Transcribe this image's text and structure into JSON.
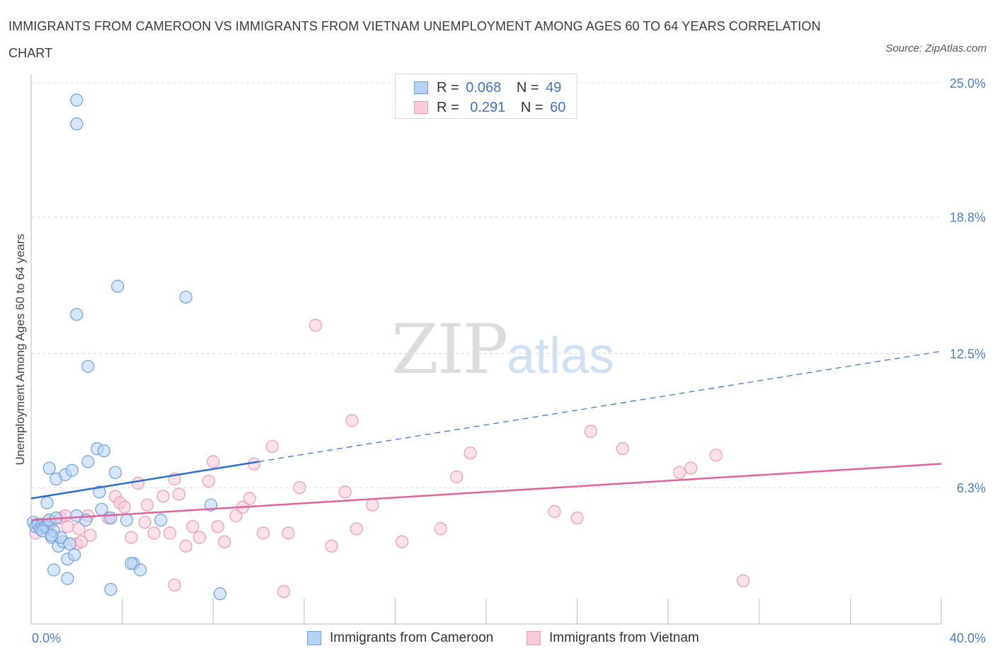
{
  "title": "IMMIGRANTS FROM CAMEROON VS IMMIGRANTS FROM VIETNAM UNEMPLOYMENT AMONG AGES 60 TO 64 YEARS CORRELATION CHART",
  "source": "Source: ZipAtlas.com",
  "watermark": {
    "zip": "ZIP",
    "atlas": "atlas"
  },
  "colors": {
    "cameroon_fill": "#b7d1f5",
    "cameroon_stroke": "#6f9fd8",
    "cameroon_line": "#2f6fd0",
    "vietnam_fill": "#f8c9d8",
    "vietnam_stroke": "#ea9ab5",
    "vietnam_line": "#e0649a",
    "tick_label": "#4a7fc8",
    "grid": "#d8d8d8"
  },
  "legend_top": {
    "rows": [
      {
        "r_label": "R =",
        "r_value": "0.068",
        "n_label": "N =",
        "n_value": "49"
      },
      {
        "r_label": "R =",
        "r_value": "0.291",
        "n_label": "N =",
        "n_value": "60"
      }
    ]
  },
  "chart_data": {
    "type": "scatter",
    "title": "IMMIGRANTS FROM CAMEROON VS IMMIGRANTS FROM VIETNAM UNEMPLOYMENT AMONG AGES 60 TO 64 YEARS CORRELATION CHART",
    "ylabel": "Unemployment Among Ages 60 to 64 years",
    "xlim": [
      0,
      40
    ],
    "ylim": [
      0,
      25
    ],
    "x_tick_labels": [
      "0.0%",
      "40.0%"
    ],
    "y_ticks": [
      6.3,
      12.5,
      18.8,
      25.0
    ],
    "y_tick_labels": [
      "6.3%",
      "12.5%",
      "18.8%",
      "25.0%"
    ],
    "series": [
      {
        "name": "Immigrants from Cameroon",
        "R": 0.068,
        "N": 49,
        "points": [
          [
            0.1,
            4.7
          ],
          [
            0.2,
            4.5
          ],
          [
            0.3,
            4.6
          ],
          [
            0.4,
            4.4
          ],
          [
            0.5,
            4.6
          ],
          [
            0.6,
            4.5
          ],
          [
            0.7,
            4.5
          ],
          [
            0.8,
            4.8
          ],
          [
            0.5,
            4.3
          ],
          [
            0.7,
            5.6
          ],
          [
            0.9,
            4.0
          ],
          [
            1.0,
            4.3
          ],
          [
            1.1,
            4.9
          ],
          [
            0.8,
            7.2
          ],
          [
            1.1,
            6.7
          ],
          [
            1.5,
            6.9
          ],
          [
            1.8,
            7.1
          ],
          [
            1.2,
            3.6
          ],
          [
            1.4,
            3.8
          ],
          [
            1.3,
            4.0
          ],
          [
            1.7,
            3.7
          ],
          [
            1.6,
            3.0
          ],
          [
            1.9,
            3.2
          ],
          [
            1.0,
            2.5
          ],
          [
            1.6,
            2.1
          ],
          [
            2.0,
            5.0
          ],
          [
            2.5,
            7.5
          ],
          [
            2.9,
            8.1
          ],
          [
            3.0,
            6.1
          ],
          [
            3.2,
            8.0
          ],
          [
            3.7,
            7.0
          ],
          [
            3.1,
            5.3
          ],
          [
            3.5,
            4.9
          ],
          [
            4.2,
            4.8
          ],
          [
            4.5,
            2.8
          ],
          [
            4.4,
            2.8
          ],
          [
            4.8,
            2.5
          ],
          [
            5.7,
            4.8
          ],
          [
            7.9,
            5.5
          ],
          [
            2.0,
            14.3
          ],
          [
            3.8,
            15.6
          ],
          [
            6.8,
            15.1
          ],
          [
            2.5,
            11.9
          ],
          [
            2.0,
            24.2
          ],
          [
            2.0,
            23.1
          ],
          [
            8.3,
            1.4
          ],
          [
            3.5,
            1.6
          ],
          [
            0.9,
            4.1
          ],
          [
            2.4,
            4.8
          ]
        ],
        "trend": {
          "x0": 0,
          "y0": 5.8,
          "x1": 40,
          "y1": 12.6,
          "solid_until": 10
        }
      },
      {
        "name": "Immigrants from Vietnam",
        "R": 0.291,
        "N": 60,
        "points": [
          [
            0.2,
            4.2
          ],
          [
            0.4,
            4.6
          ],
          [
            0.7,
            4.4
          ],
          [
            0.9,
            4.7
          ],
          [
            1.3,
            4.9
          ],
          [
            1.5,
            5.0
          ],
          [
            1.6,
            4.5
          ],
          [
            2.1,
            4.4
          ],
          [
            2.0,
            3.7
          ],
          [
            2.6,
            4.1
          ],
          [
            2.5,
            5.0
          ],
          [
            3.4,
            4.9
          ],
          [
            3.7,
            5.9
          ],
          [
            3.9,
            5.6
          ],
          [
            4.1,
            5.4
          ],
          [
            4.4,
            4.0
          ],
          [
            4.7,
            6.5
          ],
          [
            5.0,
            4.7
          ],
          [
            5.1,
            5.5
          ],
          [
            5.4,
            4.2
          ],
          [
            5.8,
            5.9
          ],
          [
            6.1,
            4.2
          ],
          [
            6.3,
            6.7
          ],
          [
            6.5,
            6.0
          ],
          [
            6.8,
            3.6
          ],
          [
            7.1,
            4.5
          ],
          [
            7.4,
            4.0
          ],
          [
            7.8,
            6.6
          ],
          [
            8.0,
            7.5
          ],
          [
            8.2,
            4.5
          ],
          [
            8.5,
            3.8
          ],
          [
            9.0,
            5.0
          ],
          [
            9.3,
            5.4
          ],
          [
            9.6,
            5.8
          ],
          [
            9.8,
            7.4
          ],
          [
            10.2,
            4.2
          ],
          [
            10.6,
            8.2
          ],
          [
            11.1,
            1.5
          ],
          [
            11.3,
            4.2
          ],
          [
            11.8,
            6.3
          ],
          [
            12.5,
            13.8
          ],
          [
            13.2,
            3.6
          ],
          [
            13.8,
            6.1
          ],
          [
            14.1,
            9.4
          ],
          [
            14.3,
            4.4
          ],
          [
            15.0,
            5.5
          ],
          [
            16.3,
            3.8
          ],
          [
            18.0,
            4.4
          ],
          [
            18.7,
            6.8
          ],
          [
            19.3,
            7.9
          ],
          [
            23.0,
            5.2
          ],
          [
            24.0,
            4.9
          ],
          [
            24.6,
            8.9
          ],
          [
            26.0,
            8.1
          ],
          [
            28.5,
            7.0
          ],
          [
            29.0,
            7.2
          ],
          [
            30.1,
            7.8
          ],
          [
            31.3,
            2.0
          ],
          [
            6.3,
            1.8
          ],
          [
            2.2,
            3.8
          ]
        ],
        "trend": {
          "x0": 0,
          "y0": 4.8,
          "x1": 40,
          "y1": 7.4
        }
      }
    ]
  }
}
